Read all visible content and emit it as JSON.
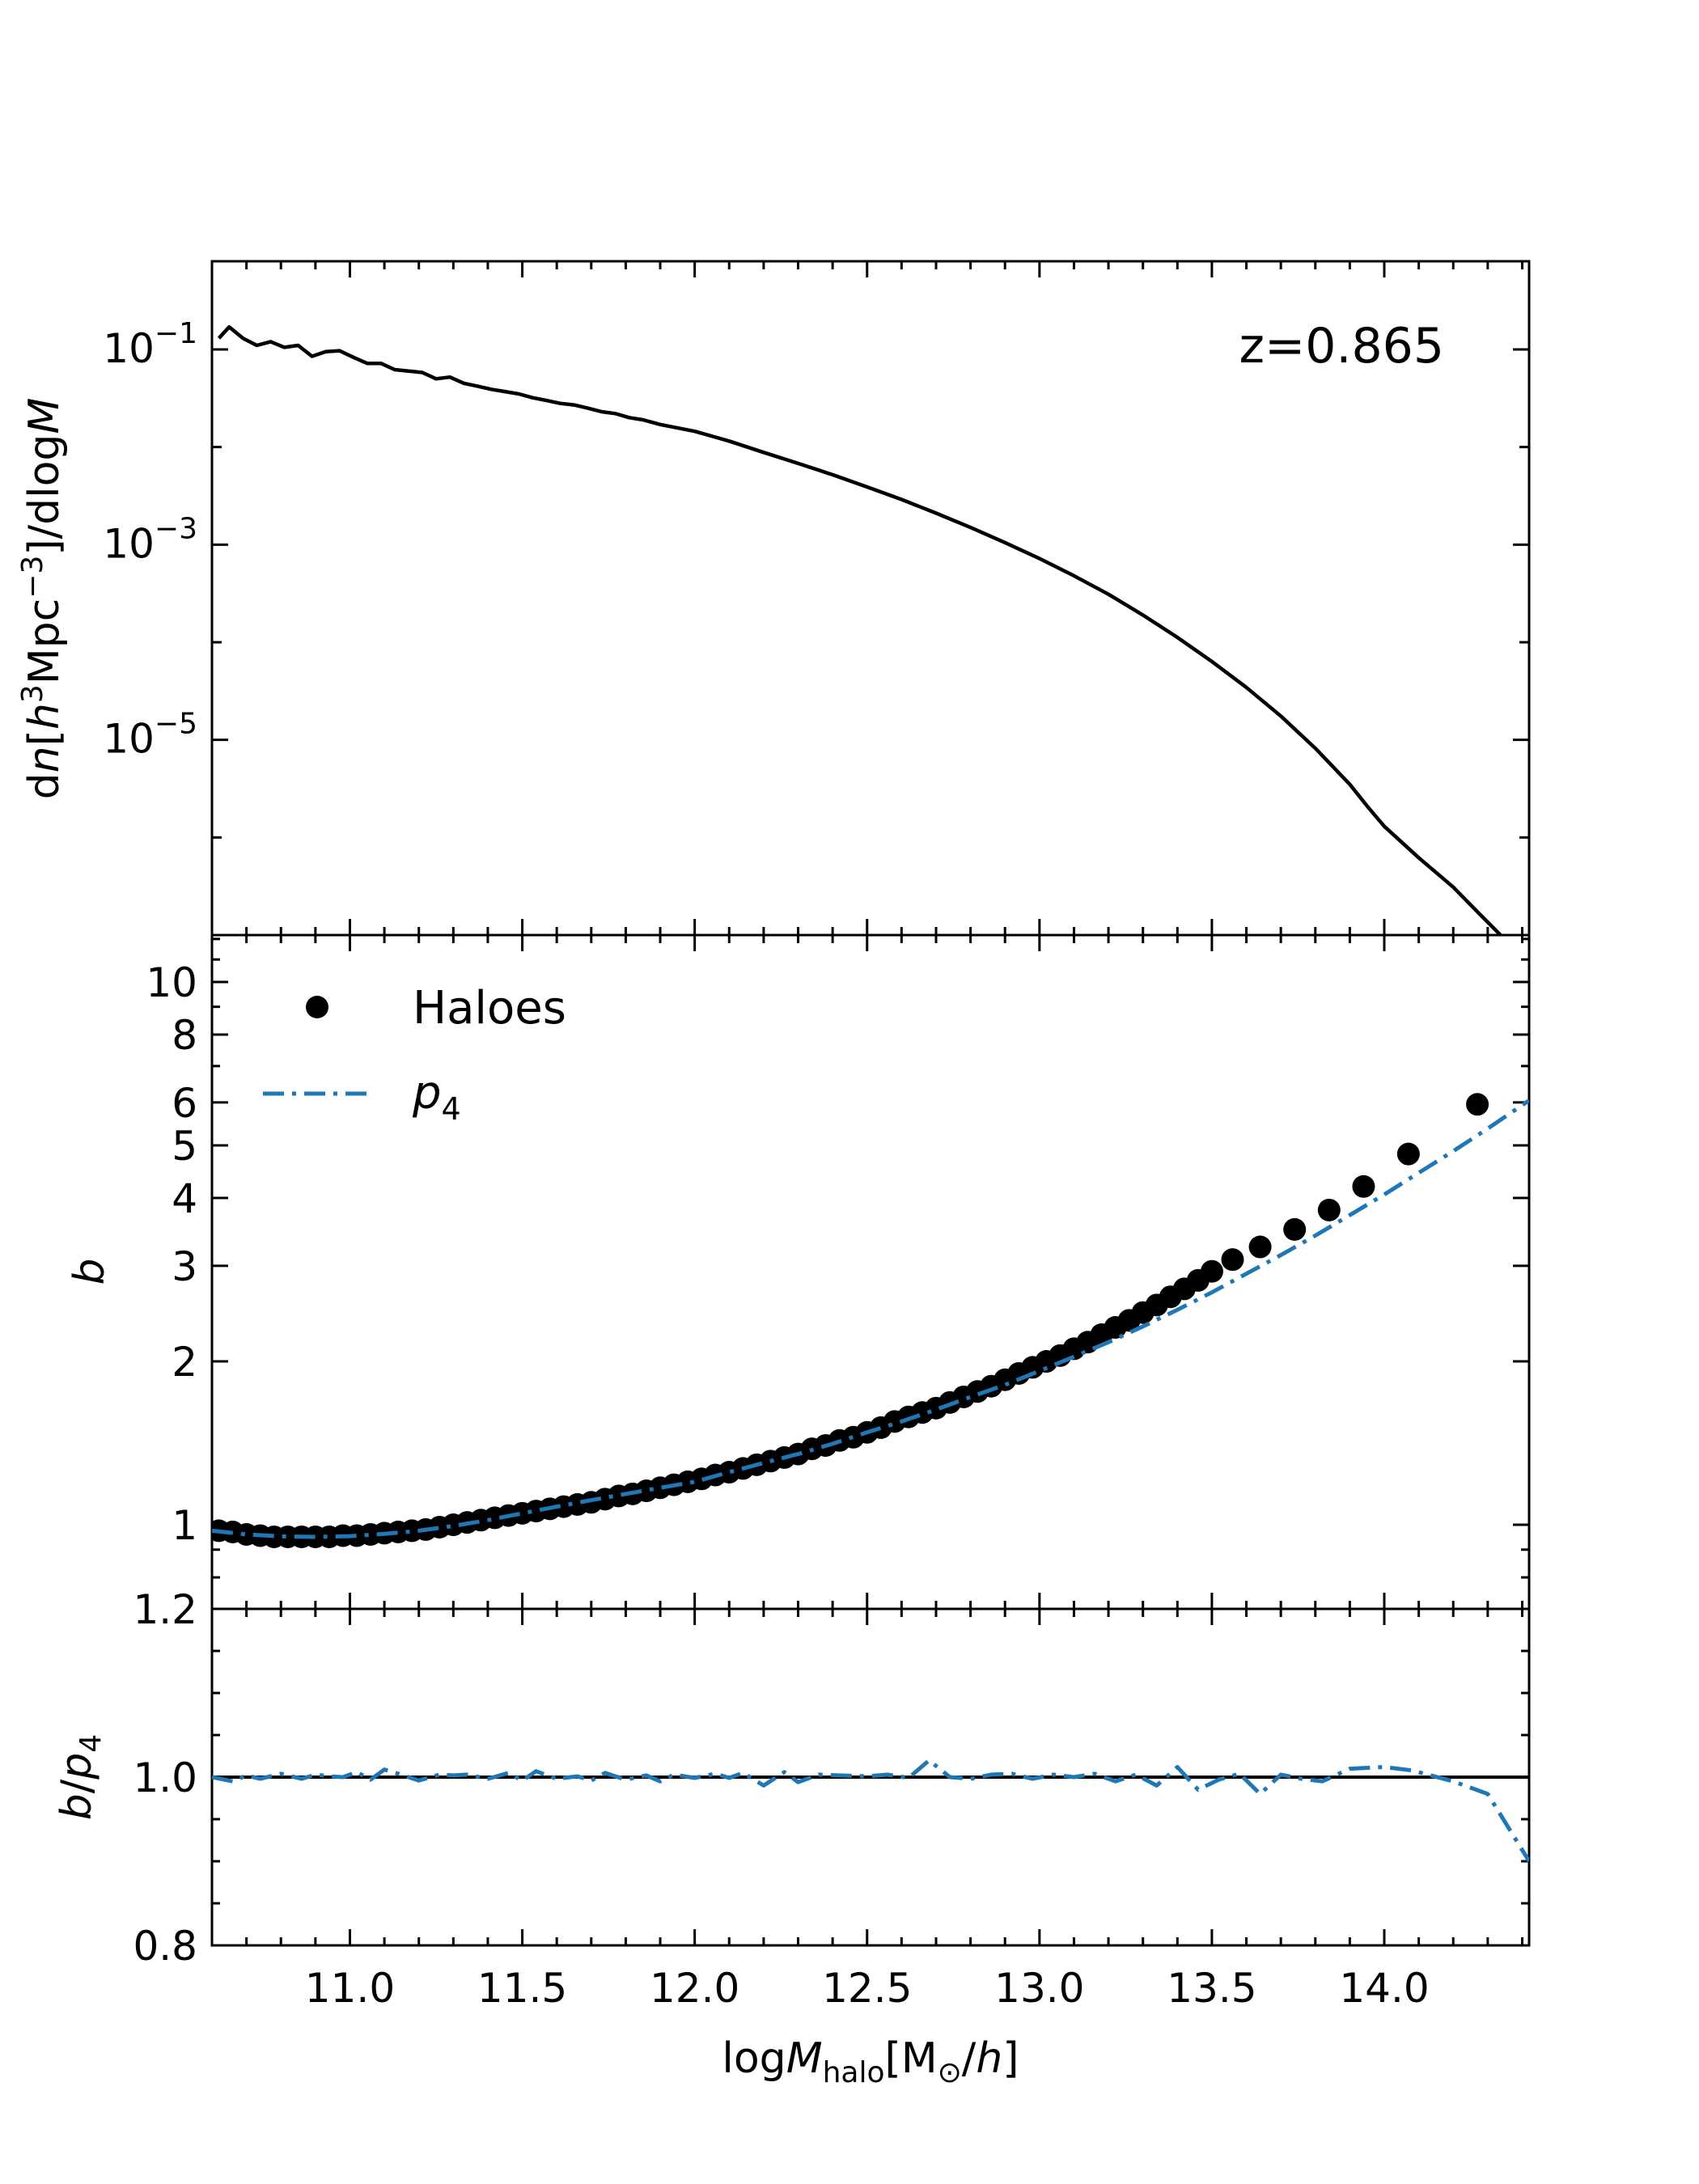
{
  "chart_data": {
    "type": "line",
    "x_axis": {
      "label_prefix": "log",
      "label_var": "M",
      "label_sub": "halo",
      "label_units_open": "[M",
      "label_units_sub": "⊙",
      "label_units_mid": "/",
      "label_units_var": "h",
      "label_units_close": "]",
      "range": [
        10.6,
        14.42
      ],
      "ticks": [
        11.0,
        11.5,
        12.0,
        12.5,
        13.0,
        13.5,
        14.0
      ],
      "tick_labels": [
        "11.0",
        "11.5",
        "12.0",
        "12.5",
        "13.0",
        "13.5",
        "14.0"
      ]
    },
    "panels": [
      {
        "name": "mass-function",
        "scale": "log",
        "ylim": [
          1e-07,
          0.8
        ],
        "ylabel": "dn[h³Mpc⁻³]/dlogM",
        "ylabel_parts": {
          "d1": "d",
          "n": "n",
          "open": "[",
          "h": "h",
          "h_exp": "3",
          "mpc": "Mpc",
          "mpc_exp": "−3",
          "close": "]/dlog",
          "m": "M"
        },
        "yticks": [
          {
            "value": 0.1,
            "base": "10",
            "exp": "−1"
          },
          {
            "value": 0.001,
            "base": "10",
            "exp": "−3"
          },
          {
            "value": 1e-05,
            "base": "10",
            "exp": "−5"
          }
        ],
        "annotation": "z=0.865",
        "series": [
          {
            "style": "solid",
            "color": "#000000",
            "x": [
              10.62,
              10.65,
              10.69,
              10.73,
              10.77,
              10.81,
              10.85,
              10.89,
              10.93,
              10.97,
              11.01,
              11.05,
              11.09,
              11.13,
              11.17,
              11.21,
              11.25,
              11.29,
              11.33,
              11.37,
              11.41,
              11.45,
              11.49,
              11.53,
              11.57,
              11.61,
              11.65,
              11.69,
              11.73,
              11.77,
              11.81,
              11.85,
              11.9,
              12.0,
              12.1,
              12.2,
              12.3,
              12.4,
              12.5,
              12.6,
              12.7,
              12.8,
              12.9,
              13.0,
              13.1,
              13.2,
              13.3,
              13.4,
              13.5,
              13.6,
              13.7,
              13.8,
              13.9,
              13.95,
              14.0,
              14.1,
              14.2,
              14.28,
              14.35,
              14.42
            ],
            "y": [
              0.13,
              0.17,
              0.13,
              0.11,
              0.12,
              0.105,
              0.11,
              0.085,
              0.095,
              0.097,
              0.083,
              0.072,
              0.072,
              0.062,
              0.06,
              0.058,
              0.05,
              0.052,
              0.045,
              0.042,
              0.039,
              0.037,
              0.035,
              0.032,
              0.03,
              0.028,
              0.027,
              0.025,
              0.023,
              0.022,
              0.02,
              0.019,
              0.017,
              0.0145,
              0.0115,
              0.0088,
              0.0068,
              0.0052,
              0.0039,
              0.0029,
              0.0021,
              0.0015,
              0.00105,
              0.00072,
              0.00048,
              0.00031,
              0.00019,
              0.000112,
              6.35e-05,
              3.45e-05,
              1.75e-05,
              8.2e-06,
              3.5e-06,
              2.1e-06,
              1.3e-06,
              6.2e-07,
              3.1e-07,
              1.6e-07,
              9e-08,
              4.5e-08
            ]
          }
        ]
      },
      {
        "name": "bias",
        "scale": "log",
        "ylim": [
          0.7,
          12.2
        ],
        "ylabel": "b",
        "yticks": [
          {
            "value": 1,
            "label": "1"
          },
          {
            "value": 2,
            "label": "2"
          },
          {
            "value": 3,
            "label": "3"
          },
          {
            "value": 4,
            "label": "4"
          },
          {
            "value": 5,
            "label": "5"
          },
          {
            "value": 6,
            "label": "6"
          },
          {
            "value": 8,
            "label": "8"
          },
          {
            "value": 10,
            "label": "10"
          }
        ],
        "legend": {
          "position": "top-left",
          "entries": [
            {
              "label": "Haloes",
              "marker": "circle"
            },
            {
              "label": "p",
              "label_sub": "4",
              "style": "dash-dot"
            }
          ]
        },
        "series": [
          {
            "name": "Haloes",
            "style": "points",
            "color": "#000000",
            "x": [
              10.62,
              10.66,
              10.7,
              10.74,
              10.78,
              10.82,
              10.86,
              10.9,
              10.94,
              10.98,
              11.02,
              11.06,
              11.1,
              11.14,
              11.18,
              11.22,
              11.26,
              11.3,
              11.34,
              11.38,
              11.42,
              11.46,
              11.5,
              11.54,
              11.58,
              11.62,
              11.66,
              11.7,
              11.74,
              11.78,
              11.82,
              11.86,
              11.9,
              11.94,
              11.98,
              12.02,
              12.06,
              12.1,
              12.14,
              12.18,
              12.22,
              12.26,
              12.3,
              12.34,
              12.38,
              12.42,
              12.46,
              12.5,
              12.54,
              12.58,
              12.62,
              12.66,
              12.7,
              12.74,
              12.78,
              12.82,
              12.86,
              12.9,
              12.94,
              12.98,
              13.02,
              13.06,
              13.1,
              13.14,
              13.18,
              13.22,
              13.26,
              13.3,
              13.34,
              13.38,
              13.42,
              13.46,
              13.5,
              13.56,
              13.64,
              13.74,
              13.84,
              13.94,
              14.07,
              14.27
            ],
            "y": [
              0.975,
              0.97,
              0.96,
              0.955,
              0.95,
              0.95,
              0.95,
              0.95,
              0.95,
              0.955,
              0.955,
              0.96,
              0.965,
              0.97,
              0.975,
              0.98,
              0.99,
              1.0,
              1.01,
              1.02,
              1.03,
              1.04,
              1.05,
              1.06,
              1.07,
              1.08,
              1.09,
              1.1,
              1.115,
              1.13,
              1.14,
              1.155,
              1.17,
              1.185,
              1.2,
              1.215,
              1.235,
              1.25,
              1.27,
              1.29,
              1.31,
              1.33,
              1.35,
              1.38,
              1.4,
              1.43,
              1.45,
              1.48,
              1.51,
              1.55,
              1.58,
              1.61,
              1.64,
              1.68,
              1.72,
              1.76,
              1.8,
              1.85,
              1.9,
              1.95,
              2.0,
              2.05,
              2.11,
              2.17,
              2.24,
              2.31,
              2.38,
              2.46,
              2.54,
              2.63,
              2.72,
              2.82,
              2.93,
              3.08,
              3.25,
              3.5,
              3.8,
              4.2,
              4.82,
              5.95
            ]
          },
          {
            "name": "p4",
            "style": "dash-dot",
            "color": "#1f77b4",
            "x": [
              10.6,
              10.7,
              10.8,
              10.9,
              11.0,
              11.1,
              11.2,
              11.3,
              11.4,
              11.5,
              11.6,
              11.7,
              11.8,
              11.9,
              12.0,
              12.1,
              12.2,
              12.3,
              12.4,
              12.5,
              12.6,
              12.7,
              12.8,
              12.9,
              13.0,
              13.1,
              13.2,
              13.3,
              13.4,
              13.5,
              13.6,
              13.7,
              13.8,
              13.9,
              14.0,
              14.1,
              14.2,
              14.3,
              14.42
            ],
            "y": [
              0.975,
              0.96,
              0.952,
              0.95,
              0.953,
              0.962,
              0.975,
              0.995,
              1.02,
              1.05,
              1.08,
              1.11,
              1.14,
              1.17,
              1.2,
              1.25,
              1.3,
              1.35,
              1.41,
              1.48,
              1.55,
              1.63,
              1.72,
              1.81,
              1.92,
              2.04,
              2.17,
              2.32,
              2.49,
              2.68,
              2.9,
              3.14,
              3.41,
              3.72,
              4.06,
              4.45,
              4.88,
              5.37,
              6.05
            ]
          }
        ]
      },
      {
        "name": "ratio",
        "scale": "linear",
        "ylim": [
          0.8,
          1.2
        ],
        "ylabel_parts": {
          "b": "b",
          "slash": "/",
          "p": "p",
          "sub": "4"
        },
        "yticks": [
          {
            "value": 0.8,
            "label": "0.8"
          },
          {
            "value": 1.0,
            "label": "1.0"
          },
          {
            "value": 1.2,
            "label": "1.2"
          }
        ],
        "reference_line": 1.0,
        "series": [
          {
            "name": "b/p4",
            "style": "dash-dot",
            "color": "#1f77b4",
            "x": [
              10.6,
              10.66,
              10.7,
              10.74,
              10.8,
              10.86,
              10.9,
              10.94,
              10.98,
              11.02,
              11.06,
              11.1,
              11.14,
              11.2,
              11.26,
              11.3,
              11.34,
              11.4,
              11.46,
              11.5,
              11.54,
              11.6,
              11.66,
              11.7,
              11.74,
              11.8,
              11.86,
              11.9,
              11.94,
              12.0,
              12.06,
              12.1,
              12.14,
              12.2,
              12.26,
              12.3,
              12.36,
              12.42,
              12.5,
              12.56,
              12.62,
              12.68,
              12.74,
              12.8,
              12.86,
              12.92,
              12.98,
              13.04,
              13.1,
              13.16,
              13.22,
              13.28,
              13.34,
              13.4,
              13.46,
              13.52,
              13.58,
              13.64,
              13.7,
              13.76,
              13.82,
              13.9,
              14.0,
              14.08,
              14.2,
              14.3,
              14.42
            ],
            "y": [
              1.0,
              0.995,
              1.002,
              0.998,
              1.004,
              0.998,
              1.003,
              1.001,
              1.0,
              1.006,
              0.997,
              1.009,
              1.004,
              0.996,
              1.003,
              1.002,
              1.003,
              0.998,
              1.005,
              0.996,
              1.007,
              0.998,
              1.001,
              0.996,
              1.005,
              0.997,
              1.002,
              0.995,
              1.003,
              0.999,
              1.004,
              0.999,
              1.005,
              0.99,
              1.006,
              0.994,
              1.003,
              1.002,
              1.001,
              1.003,
              0.999,
              1.02,
              1.0,
              0.998,
              1.003,
              1.004,
              0.998,
              1.003,
              1.0,
              1.004,
              0.995,
              1.003,
              0.99,
              1.012,
              0.985,
              0.997,
              1.004,
              0.98,
              1.003,
              0.998,
              0.995,
              1.01,
              1.012,
              1.008,
              0.995,
              0.98,
              0.9
            ]
          }
        ]
      }
    ]
  }
}
